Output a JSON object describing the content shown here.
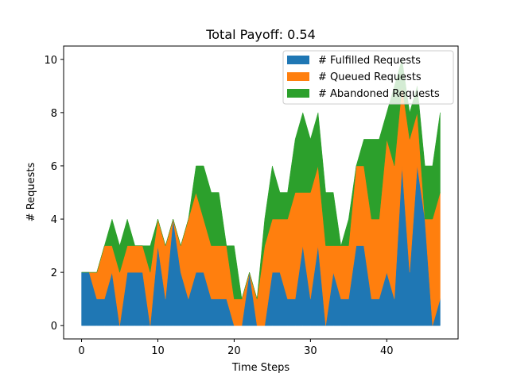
{
  "chart_data": {
    "type": "area",
    "stacked": true,
    "title": "Total Payoff: 0.54",
    "xlabel": "Time Steps",
    "ylabel": "# Requests",
    "xlim": [
      -2.35,
      49.35
    ],
    "ylim": [
      -0.5,
      10.5
    ],
    "xticks": [
      0,
      10,
      20,
      30,
      40
    ],
    "yticks": [
      0,
      2,
      4,
      6,
      8,
      10
    ],
    "legend_position": "upper-right",
    "x": [
      0,
      1,
      2,
      3,
      4,
      5,
      6,
      7,
      8,
      9,
      10,
      11,
      12,
      13,
      14,
      15,
      16,
      17,
      18,
      19,
      20,
      21,
      22,
      23,
      24,
      25,
      26,
      27,
      28,
      29,
      30,
      31,
      32,
      33,
      34,
      35,
      36,
      37,
      38,
      39,
      40,
      41,
      42,
      43,
      44,
      45,
      46,
      47
    ],
    "series": [
      {
        "name": "# Fulfilled Requests",
        "color": "#1f77b4",
        "values": [
          2,
          2,
          1,
          1,
          2,
          0,
          2,
          2,
          2,
          0,
          3,
          1,
          4,
          2,
          1,
          2,
          2,
          1,
          1,
          1,
          0,
          0,
          2,
          0,
          0,
          2,
          2,
          1,
          1,
          3,
          1,
          3,
          0,
          2,
          1,
          1,
          3,
          3,
          1,
          1,
          2,
          1,
          6,
          2,
          6,
          4,
          0,
          1
        ]
      },
      {
        "name": "# Queued Requests",
        "color": "#ff7f0e",
        "values": [
          0,
          0,
          1,
          2,
          1,
          2,
          1,
          1,
          1,
          2,
          1,
          2,
          0,
          1,
          3,
          3,
          2,
          2,
          2,
          2,
          1,
          1,
          0,
          1,
          3,
          2,
          2,
          3,
          4,
          2,
          4,
          3,
          3,
          1,
          2,
          2,
          3,
          3,
          3,
          3,
          5,
          5,
          3,
          5,
          2,
          0,
          4,
          4
        ]
      },
      {
        "name": "# Abandoned Requests",
        "color": "#2ca02c",
        "values": [
          0,
          0,
          0,
          0,
          1,
          1,
          1,
          0,
          0,
          1,
          0,
          0,
          0,
          0,
          0,
          1,
          2,
          2,
          2,
          0,
          2,
          0,
          0,
          0,
          1,
          2,
          1,
          1,
          2,
          3,
          2,
          2,
          2,
          2,
          0,
          1,
          0,
          1,
          3,
          3,
          1,
          3,
          1,
          1,
          1,
          2,
          2,
          3
        ]
      }
    ]
  }
}
